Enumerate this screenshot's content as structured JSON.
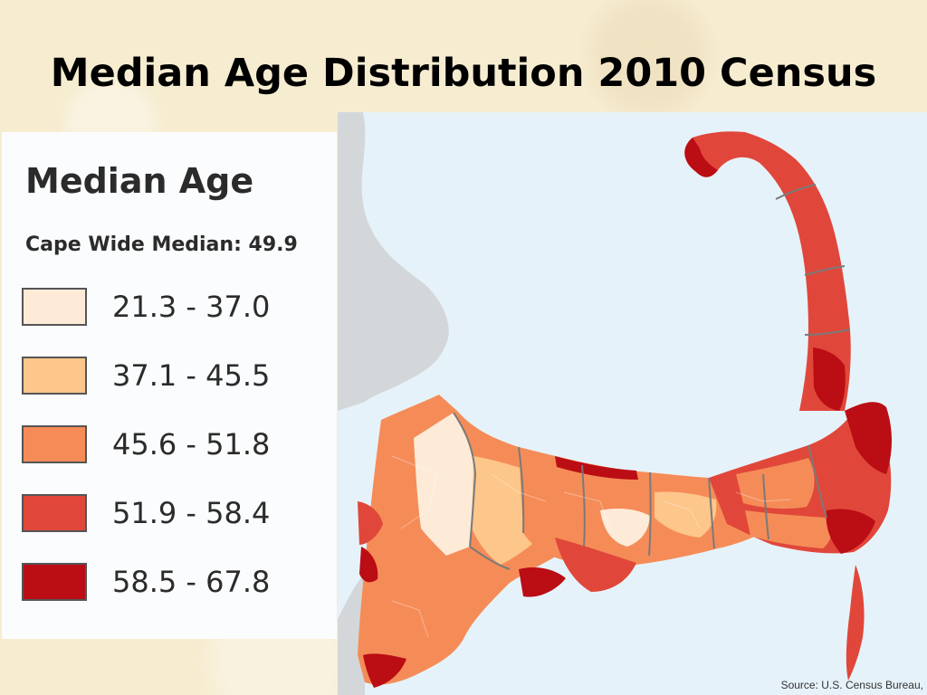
{
  "slide": {
    "title": "Median Age Distribution 2010 Census"
  },
  "legend": {
    "title": "Median Age",
    "subtitle": "Cape Wide Median: 49.9",
    "classes": [
      {
        "range": "21.3 - 37.0",
        "color": "#fdebd8"
      },
      {
        "range": "37.1 - 45.5",
        "color": "#fdc68a"
      },
      {
        "range": "45.6 - 51.8",
        "color": "#f58c58"
      },
      {
        "range": "51.9 - 58.4",
        "color": "#e0473a"
      },
      {
        "range": "58.5 - 67.8",
        "color": "#bb0d14"
      }
    ]
  },
  "map": {
    "source": "Source: U.S. Census Bureau,",
    "water_color": "#e6f2f9",
    "land_color": "#d3d7da"
  }
}
